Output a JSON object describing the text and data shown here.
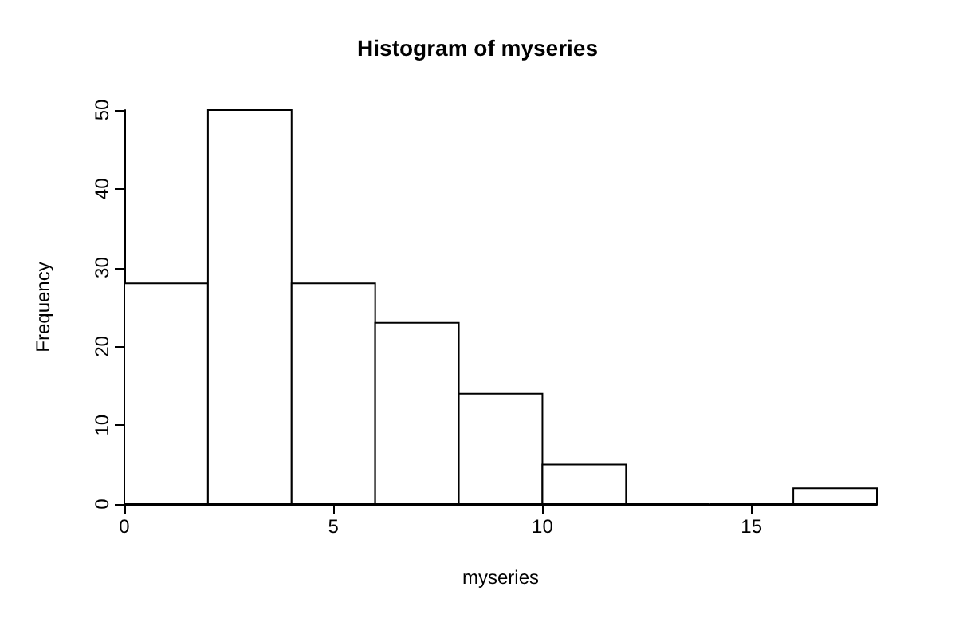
{
  "chart_data": {
    "type": "histogram",
    "title": "Histogram of myseries",
    "xlabel": "myseries",
    "ylabel": "Frequency",
    "bins": [
      0,
      2,
      4,
      6,
      8,
      10,
      12,
      14,
      16,
      18
    ],
    "values": [
      28,
      50,
      28,
      23,
      14,
      5,
      0,
      0,
      2
    ],
    "color": "#ffffff",
    "xlim": [
      0,
      18
    ],
    "xticks": [
      0,
      5,
      10,
      15
    ],
    "ylim": [
      0,
      50
    ],
    "yticks": [
      0,
      10,
      20,
      30,
      40,
      50
    ],
    "grid": false
  }
}
